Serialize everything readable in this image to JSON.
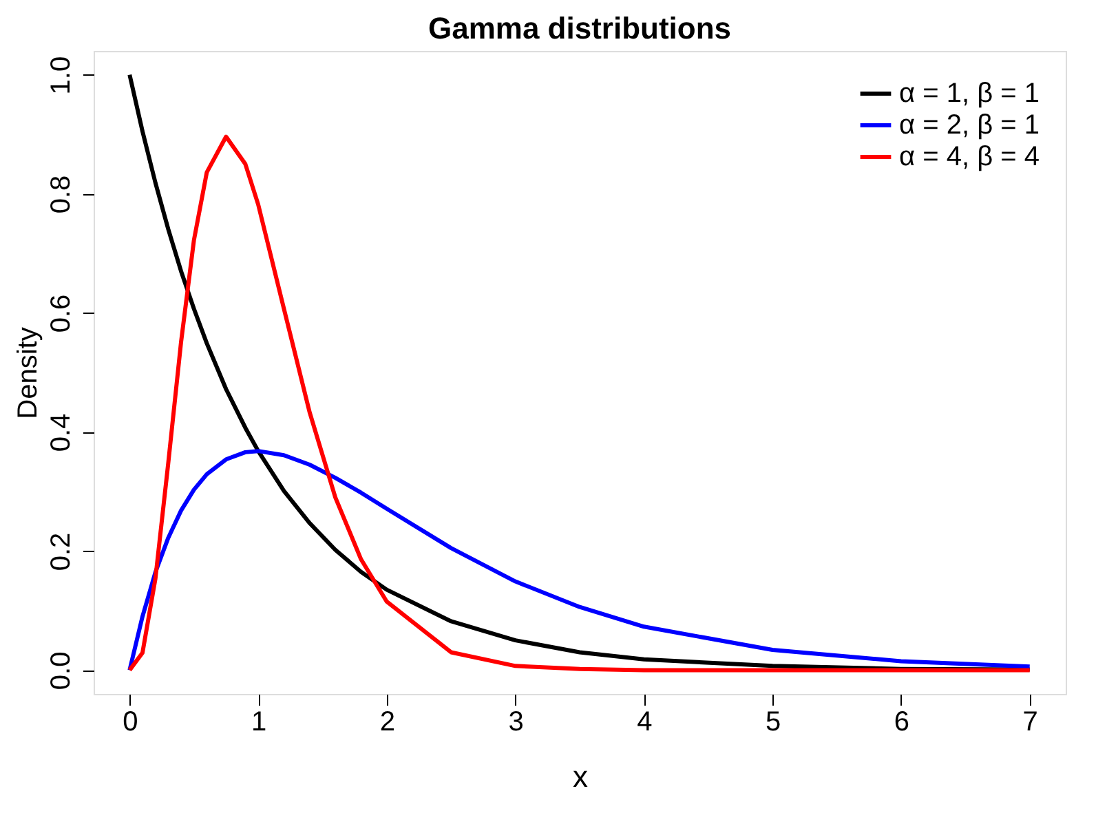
{
  "chart_data": {
    "type": "line",
    "title": "Gamma distributions",
    "xlabel": "x",
    "ylabel": "Density",
    "x": [
      0,
      0.1,
      0.2,
      0.3,
      0.4,
      0.5,
      0.6,
      0.75,
      0.9,
      1,
      1.2,
      1.4,
      1.6,
      1.8,
      2,
      2.5,
      3,
      3.5,
      4,
      5,
      6,
      7
    ],
    "series": [
      {
        "name": "α = 1, β = 1",
        "color": "#000000",
        "values": [
          1,
          0.905,
          0.819,
          0.741,
          0.67,
          0.607,
          0.549,
          0.472,
          0.407,
          0.368,
          0.301,
          0.247,
          0.202,
          0.165,
          0.135,
          0.082,
          0.05,
          0.03,
          0.018,
          0.007,
          0.002,
          0.001
        ]
      },
      {
        "name": "α = 2, β = 1",
        "color": "#0000ff",
        "values": [
          0,
          0.09,
          0.164,
          0.222,
          0.268,
          0.303,
          0.329,
          0.354,
          0.366,
          0.368,
          0.361,
          0.345,
          0.323,
          0.298,
          0.271,
          0.205,
          0.149,
          0.106,
          0.073,
          0.034,
          0.015,
          0.006
        ]
      },
      {
        "name": "α = 4, β = 4",
        "color": "#ff0000",
        "values": [
          0,
          0.029,
          0.153,
          0.347,
          0.551,
          0.722,
          0.836,
          0.896,
          0.85,
          0.782,
          0.607,
          0.433,
          0.29,
          0.186,
          0.115,
          0.03,
          0.007,
          0.002,
          0,
          0,
          0,
          0
        ]
      }
    ],
    "xlim": [
      -0.28,
      7.28
    ],
    "ylim": [
      -0.04,
      1.04
    ],
    "xticks": [
      0,
      1,
      2,
      3,
      4,
      5,
      6,
      7
    ],
    "yticks": [
      {
        "value": 0,
        "label": "0.0"
      },
      0.2,
      0.4,
      0.6,
      0.8,
      {
        "value": 1,
        "label": "1.0"
      }
    ],
    "legend": "top right",
    "grid": false,
    "marker": "none",
    "line_style": "solid"
  }
}
